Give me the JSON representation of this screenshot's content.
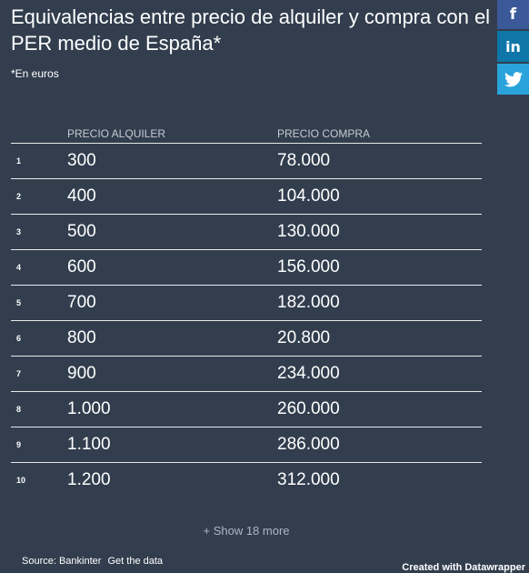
{
  "title": "Equivalencias entre precio de alquiler y compra con el PER medio de España*",
  "subtitle": "*En euros",
  "social": {
    "facebook": "f",
    "linkedin": "in",
    "twitter": "twitter-bird-icon"
  },
  "table": {
    "headers": [
      "",
      "PRECIO ALQUILER",
      "PRECIO COMPRA"
    ],
    "rows": [
      {
        "num": "1",
        "alquiler": "300",
        "compra": "78.000"
      },
      {
        "num": "2",
        "alquiler": "400",
        "compra": "104.000"
      },
      {
        "num": "3",
        "alquiler": "500",
        "compra": "130.000"
      },
      {
        "num": "4",
        "alquiler": "600",
        "compra": "156.000"
      },
      {
        "num": "5",
        "alquiler": "700",
        "compra": "182.000"
      },
      {
        "num": "6",
        "alquiler": "800",
        "compra": "20.800"
      },
      {
        "num": "7",
        "alquiler": "900",
        "compra": "234.000"
      },
      {
        "num": "8",
        "alquiler": "1.000",
        "compra": "260.000"
      },
      {
        "num": "9",
        "alquiler": "1.100",
        "compra": "286.000"
      },
      {
        "num": "10",
        "alquiler": "1.200",
        "compra": "312.000"
      }
    ]
  },
  "show_more": "+ Show 18 more",
  "footer": {
    "source": "Source: Bankinter",
    "get_data": "Get the data",
    "credit": "Created with Datawrapper"
  },
  "colors": {
    "background": "#323e4e",
    "facebook": "#3b5998",
    "linkedin": "#0e76a8",
    "twitter": "#2aa3db"
  }
}
